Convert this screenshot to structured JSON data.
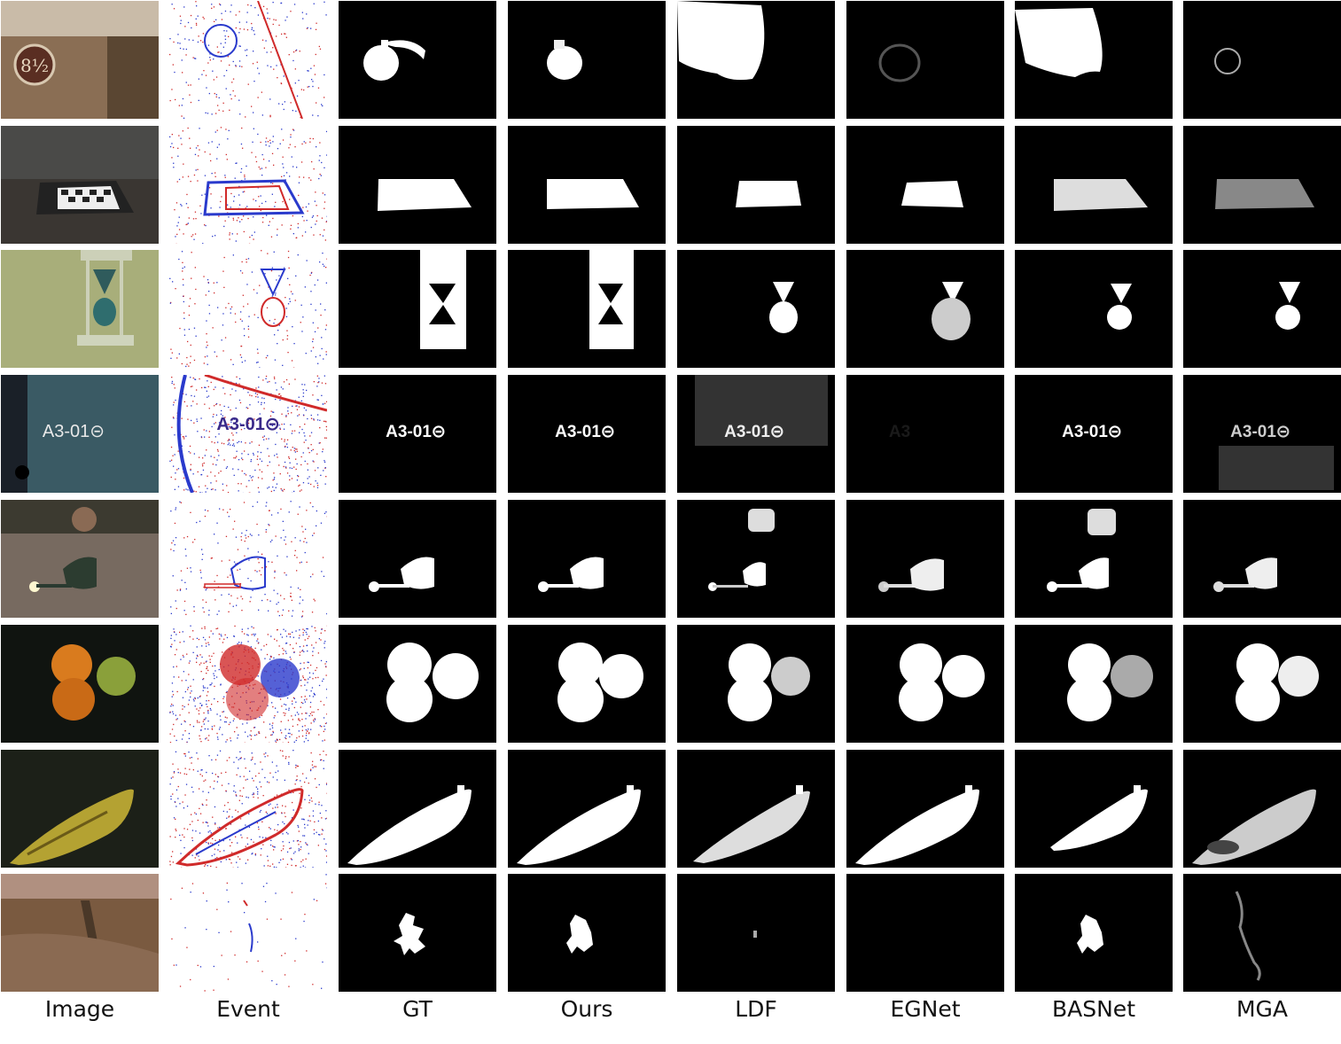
{
  "columns": [
    "Image",
    "Event",
    "GT",
    "Ours",
    "LDF",
    "EGNet",
    "BASNet",
    "MGA"
  ],
  "rows": [
    {
      "subject": "platform-sign",
      "sign_text": "8½"
    },
    {
      "subject": "checkerboard"
    },
    {
      "subject": "hourglass"
    },
    {
      "subject": "door-sign",
      "sign_text": "A3-01⊝"
    },
    {
      "subject": "watering-can"
    },
    {
      "subject": "fruits"
    },
    {
      "subject": "banana"
    },
    {
      "subject": "leaf"
    }
  ]
}
